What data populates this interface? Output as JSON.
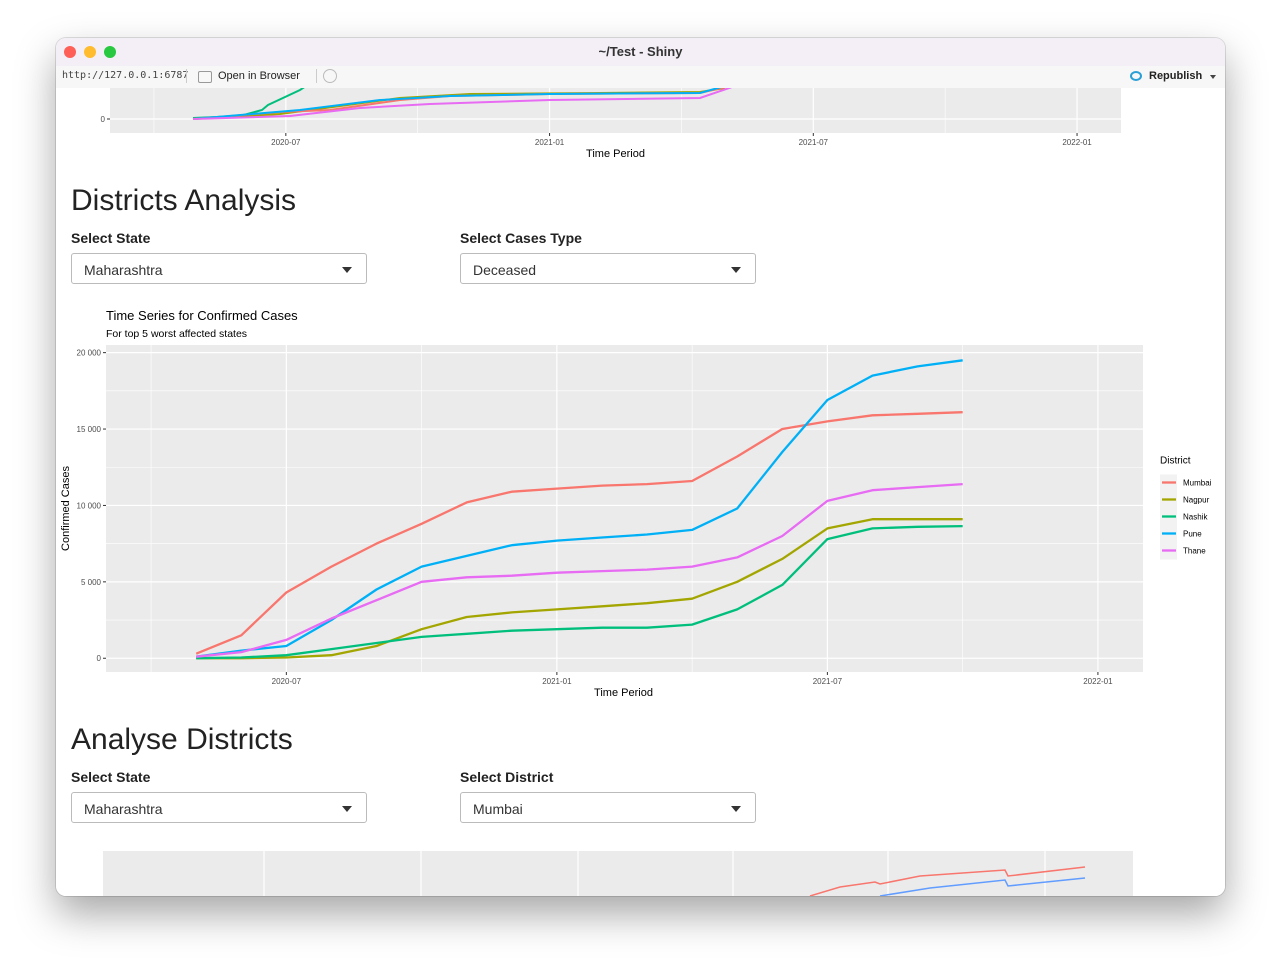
{
  "window": {
    "title": "~/Test - Shiny"
  },
  "toolbar": {
    "url": "http://127.0.0.1:6787",
    "open": "Open in Browser",
    "publish": "Republish"
  },
  "sections": [
    {
      "heading": "Districts Analysis",
      "controls": [
        {
          "label": "Select State",
          "value": "Maharashtra"
        },
        {
          "label": "Select Cases Type",
          "value": "Deceased"
        }
      ]
    },
    {
      "heading": "Analyse Districts",
      "controls": [
        {
          "label": "Select State",
          "value": "Maharashtra"
        },
        {
          "label": "Select District",
          "value": "Mumbai"
        }
      ]
    }
  ],
  "chart_data": [
    {
      "type": "line",
      "xlabel": "Time Period",
      "xlim": [
        "2020-03",
        "2022-02"
      ],
      "xticks": [
        "2020-07",
        "2021-01",
        "2021-07",
        "2022-01"
      ],
      "yticks": [
        0
      ],
      "grid": true
    },
    {
      "type": "line",
      "title": "Time Series for Confirmed Cases",
      "subtitle": "For top 5 worst affected states",
      "xlabel": "Time Period",
      "ylabel": "Confirmed Cases",
      "legend_title": "District",
      "legend": "right",
      "grid": true,
      "x": [
        "2020-05",
        "2020-06",
        "2020-07",
        "2020-08",
        "2020-09",
        "2020-10",
        "2020-11",
        "2020-12",
        "2021-01",
        "2021-02",
        "2021-03",
        "2021-04",
        "2021-05",
        "2021-06",
        "2021-07",
        "2021-08",
        "2021-09",
        "2021-10"
      ],
      "series": [
        {
          "name": "Mumbai",
          "color": "#F8766D",
          "values": [
            300,
            1500,
            4300,
            6000,
            7500,
            8800,
            10200,
            10900,
            11100,
            11300,
            11400,
            11600,
            13200,
            15000,
            15500,
            15900,
            16000,
            16100
          ]
        },
        {
          "name": "Nagpur",
          "color": "#A3A500",
          "values": [
            0,
            0,
            50,
            200,
            800,
            1900,
            2700,
            3000,
            3200,
            3400,
            3600,
            3900,
            5000,
            6500,
            8500,
            9100,
            9100,
            9100
          ]
        },
        {
          "name": "Nashik",
          "color": "#00BF7D",
          "values": [
            0,
            50,
            200,
            600,
            1000,
            1400,
            1600,
            1800,
            1900,
            2000,
            2000,
            2200,
            3200,
            4800,
            7800,
            8500,
            8600,
            8650
          ]
        },
        {
          "name": "Pune",
          "color": "#00B0F6",
          "values": [
            100,
            500,
            800,
            2500,
            4500,
            6000,
            6700,
            7400,
            7700,
            7900,
            8100,
            8400,
            9800,
            13500,
            16900,
            18500,
            19100,
            19500
          ]
        },
        {
          "name": "Thane",
          "color": "#E76BF3",
          "values": [
            100,
            400,
            1200,
            2600,
            3800,
            5000,
            5300,
            5400,
            5600,
            5700,
            5800,
            6000,
            6600,
            8000,
            10300,
            11000,
            11200,
            11400
          ]
        }
      ],
      "xlim": [
        "2020-03",
        "2022-02"
      ],
      "xticks": [
        "2020-07",
        "2021-01",
        "2021-07",
        "2022-01"
      ],
      "ylim": [
        -900,
        20500
      ],
      "yticks": [
        0,
        {
          "value": 5000,
          "label": "5 000"
        },
        {
          "value": 10000,
          "label": "10 000"
        },
        {
          "value": 15000,
          "label": "15 000"
        },
        {
          "value": 20000,
          "label": "20 000"
        }
      ]
    }
  ]
}
